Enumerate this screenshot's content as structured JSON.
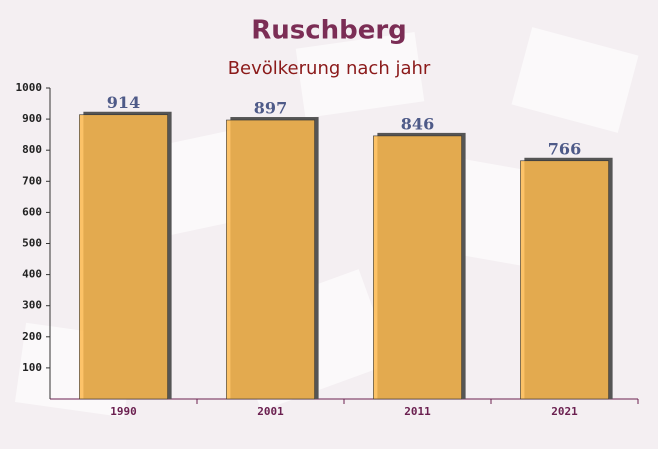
{
  "chart_data": {
    "type": "bar",
    "title": "Ruschberg",
    "subtitle": "Bevölkerung nach jahr",
    "categories": [
      "1990",
      "2001",
      "2011",
      "2021"
    ],
    "values": [
      914,
      897,
      846,
      766
    ],
    "color": "#fdba4f",
    "ylim": [
      0,
      1000
    ],
    "yticks": [
      100,
      200,
      300,
      400,
      500,
      600,
      700,
      800,
      900,
      1000
    ]
  }
}
